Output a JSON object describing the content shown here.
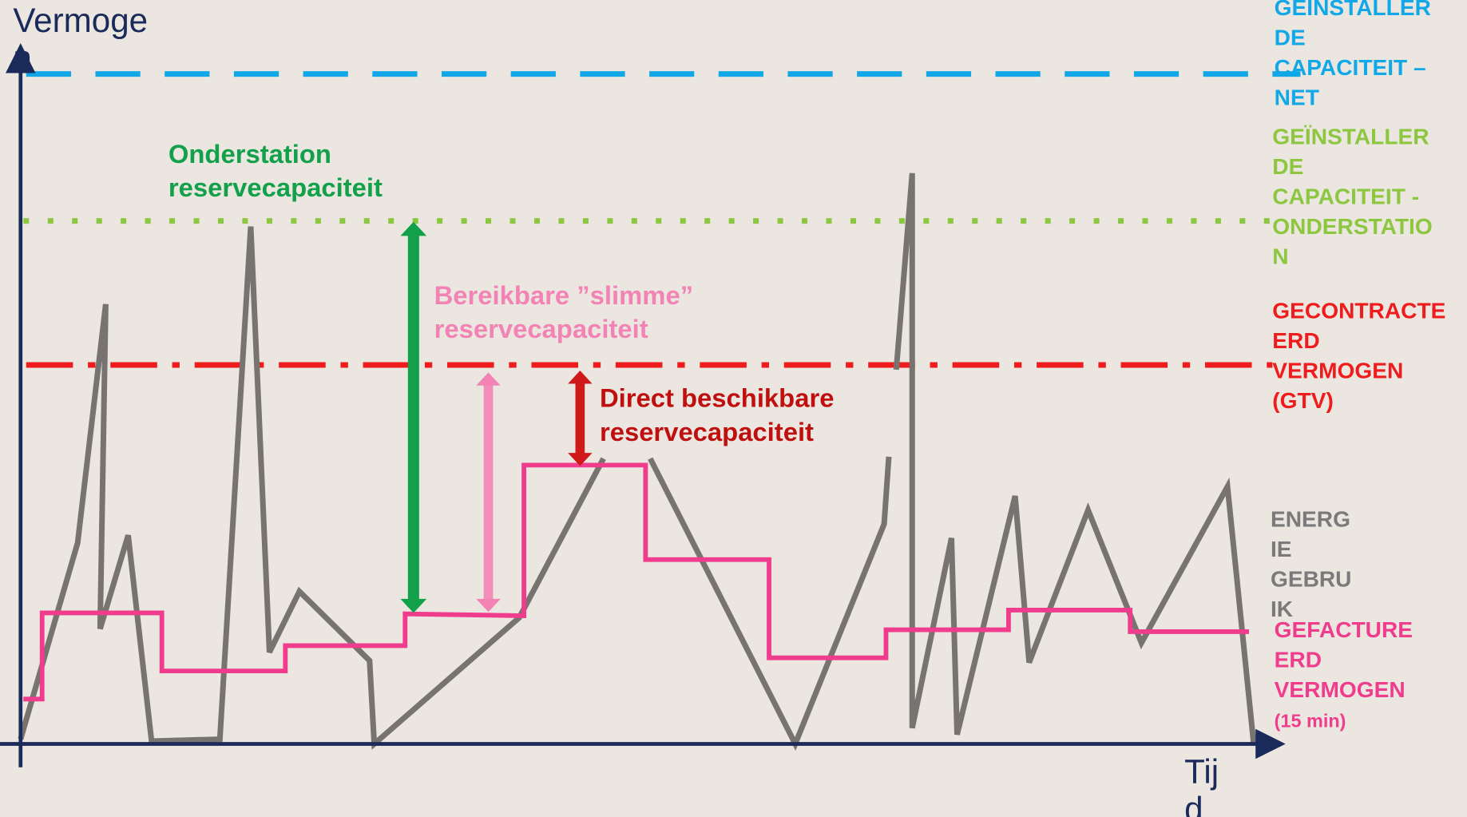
{
  "axes": {
    "y_label": [
      "Vermoge",
      "n"
    ],
    "x_label": [
      "Tij",
      "d"
    ]
  },
  "annotations": {
    "substation": [
      "Onderstation",
      "reservecapaciteit"
    ],
    "smart": [
      "Bereikbare ”slimme”",
      "reservecapaciteit"
    ],
    "direct": [
      "Direct beschikbare",
      "reservecapaciteit"
    ]
  },
  "legend": [
    {
      "lines": [
        "GEÏNSTALLER",
        "DE",
        "CAPACITEIT –",
        "NET"
      ],
      "color": "#12a8e8"
    },
    {
      "lines": [
        "GEÏNSTALLER",
        "DE",
        "CAPACITEIT -",
        "ONDERSTATIO",
        "N"
      ],
      "color": "#8dc63f"
    },
    {
      "lines": [
        "GECONTRACTE",
        "ERD",
        "VERMOGEN",
        "(GTV)"
      ],
      "color": "#ee1c1c"
    },
    {
      "lines": [
        "ENERG",
        "IE",
        "GEBRU",
        "IK"
      ],
      "color": "#7a7a7a"
    },
    {
      "lines": [
        "GEFACTURE",
        "ERD",
        "VERMOGEN",
        "(15 min)"
      ],
      "color": "#f03c8c"
    }
  ]
}
